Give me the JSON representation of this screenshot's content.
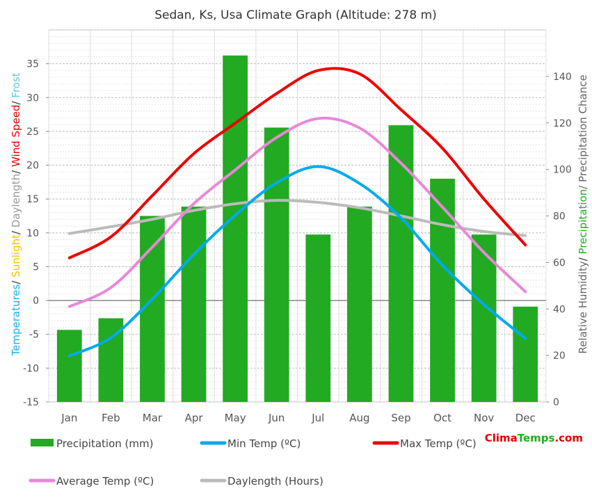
{
  "chart_data": {
    "type": "bar",
    "title": "Sedan, Ks, Usa Climate Graph (Altitude: 278 m)",
    "categories": [
      "Jan",
      "Feb",
      "Mar",
      "Apr",
      "May",
      "Jun",
      "Jul",
      "Aug",
      "Sep",
      "Oct",
      "Nov",
      "Dec"
    ],
    "left_axis": {
      "label_parts": [
        {
          "text": "Temperatures",
          "color": "#1ab0e6"
        },
        {
          "text": "/ ",
          "color": "#333333"
        },
        {
          "text": "Sunlight",
          "color": "#f0c000"
        },
        {
          "text": "/ ",
          "color": "#333333"
        },
        {
          "text": "Daylength",
          "color": "#999999"
        },
        {
          "text": "/ ",
          "color": "#333333"
        },
        {
          "text": "Wind Speed",
          "color": "#e00000"
        },
        {
          "text": "/ ",
          "color": "#333333"
        },
        {
          "text": "Frost",
          "color": "#66cccc"
        }
      ],
      "ylim": [
        -15,
        40
      ],
      "ticks": [
        -15,
        -10,
        -5,
        0,
        5,
        10,
        15,
        20,
        25,
        30,
        35
      ]
    },
    "right_axis": {
      "label_parts": [
        {
          "text": "Relative Humidity",
          "color": "#666666"
        },
        {
          "text": "/ ",
          "color": "#333333"
        },
        {
          "text": "Precipitation",
          "color": "#22aa22"
        },
        {
          "text": "/ Precipitation Chance",
          "color": "#666666"
        }
      ],
      "ylim": [
        0,
        160
      ],
      "ticks": [
        0,
        20,
        40,
        60,
        80,
        100,
        120,
        140
      ]
    },
    "series": [
      {
        "name": "Precipitation (mm)",
        "kind": "bar",
        "axis": "right",
        "color": "#22aa22",
        "values": [
          31,
          36,
          80,
          84,
          149,
          118,
          72,
          84,
          119,
          96,
          72,
          41
        ]
      },
      {
        "name": "Min Temp (ºC)",
        "kind": "line",
        "axis": "left",
        "color": "#00aaee",
        "values": [
          -8.2,
          -5.5,
          0.2,
          6.8,
          12.6,
          17.4,
          19.8,
          17.3,
          12.2,
          5.2,
          -0.6,
          -5.6
        ]
      },
      {
        "name": "Max Temp (ºC)",
        "kind": "line",
        "axis": "left",
        "color": "#ee0000",
        "values": [
          6.3,
          9.4,
          15.5,
          21.7,
          26.2,
          30.6,
          34.0,
          33.5,
          28.2,
          22.5,
          15.0,
          8.2
        ]
      },
      {
        "name": "Average Temp (ºC)",
        "kind": "line",
        "axis": "left",
        "color": "#e888d8",
        "values": [
          -0.9,
          1.9,
          7.9,
          14.3,
          19.3,
          24.1,
          26.9,
          25.5,
          20.3,
          13.8,
          7.1,
          1.3
        ]
      },
      {
        "name": "Daylength (Hours)",
        "kind": "line",
        "axis": "left",
        "color": "#bbbbbb",
        "values": [
          9.9,
          10.9,
          12.0,
          13.3,
          14.3,
          14.8,
          14.5,
          13.7,
          12.5,
          11.2,
          10.2,
          9.6
        ]
      }
    ],
    "grid": true,
    "legend_position": "bottom"
  },
  "brand": {
    "part1": "Clima",
    "part2": "Temps",
    "part3": ".com",
    "color1": "#dd0000",
    "color2": "#22aa22"
  }
}
